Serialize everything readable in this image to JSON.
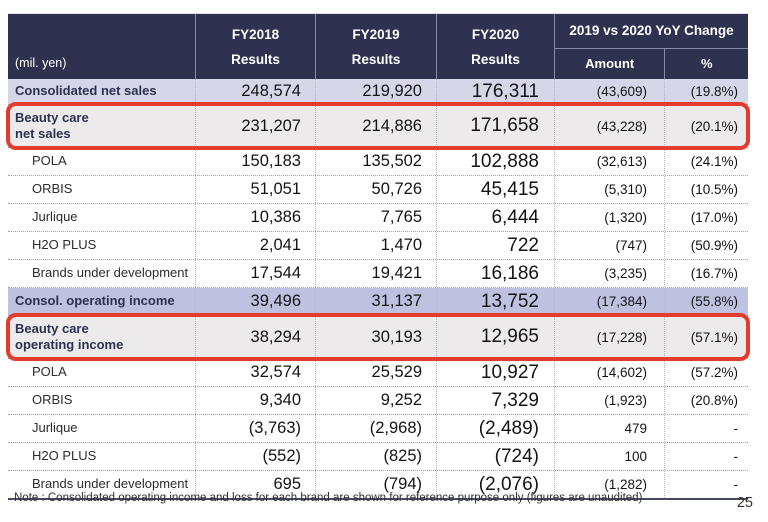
{
  "colors": {
    "header_bg": "#2e3150",
    "header_text": "#ffffff",
    "row_highlight_light": "#d5d6e8",
    "row_highlight_medium": "#bfc1e1",
    "beauty_row_bg": "#eceaeb",
    "red_box_border": "#e43b2e"
  },
  "table": {
    "unit_label": "(mil. yen)",
    "columns": [
      {
        "label": "FY2018",
        "sublabel": "Results"
      },
      {
        "label": "FY2019",
        "sublabel": "Results"
      },
      {
        "label": "FY2020",
        "sublabel": "Results"
      },
      {
        "group": "2019 vs 2020 YoY Change",
        "sub": [
          "Amount",
          "%"
        ]
      }
    ],
    "rows": [
      {
        "label": "Consolidated net sales",
        "type": "highlight-light",
        "values": [
          "248,574",
          "219,920",
          "176,311",
          "(43,609)",
          "(19.8%)"
        ]
      },
      {
        "label": "Beauty care net sales",
        "label_lines": [
          "Beauty care",
          "net sales"
        ],
        "type": "beauty",
        "values": [
          "231,207",
          "214,886",
          "171,658",
          "(43,228)",
          "(20.1%)"
        ]
      },
      {
        "label": "POLA",
        "type": "sub",
        "values": [
          "150,183",
          "135,502",
          "102,888",
          "(32,613)",
          "(24.1%)"
        ]
      },
      {
        "label": "ORBIS",
        "type": "sub",
        "values": [
          "51,051",
          "50,726",
          "45,415",
          "(5,310)",
          "(10.5%)"
        ]
      },
      {
        "label": "Jurlique",
        "type": "sub",
        "values": [
          "10,386",
          "7,765",
          "6,444",
          "(1,320)",
          "(17.0%)"
        ]
      },
      {
        "label": "H2O PLUS",
        "type": "sub",
        "values": [
          "2,041",
          "1,470",
          "722",
          "(747)",
          "(50.9%)"
        ]
      },
      {
        "label": "Brands under development",
        "type": "sub",
        "values": [
          "17,544",
          "19,421",
          "16,186",
          "(3,235)",
          "(16.7%)"
        ]
      },
      {
        "label": "Consol. operating income",
        "type": "highlight-medium",
        "values": [
          "39,496",
          "31,137",
          "13,752",
          "(17,384)",
          "(55.8%)"
        ]
      },
      {
        "label": "Beauty care operating income",
        "label_lines": [
          "Beauty care",
          "operating income"
        ],
        "type": "beauty",
        "values": [
          "38,294",
          "30,193",
          "12,965",
          "(17,228)",
          "(57.1%)"
        ]
      },
      {
        "label": "POLA",
        "type": "sub",
        "values": [
          "32,574",
          "25,529",
          "10,927",
          "(14,602)",
          "(57.2%)"
        ]
      },
      {
        "label": "ORBIS",
        "type": "sub",
        "values": [
          "9,340",
          "9,252",
          "7,329",
          "(1,923)",
          "(20.8%)"
        ]
      },
      {
        "label": "Jurlique",
        "type": "sub",
        "values": [
          "(3,763)",
          "(2,968)",
          "(2,489)",
          "479",
          "-"
        ]
      },
      {
        "label": "H2O PLUS",
        "type": "sub",
        "values": [
          "(552)",
          "(825)",
          "(724)",
          "100",
          "-"
        ]
      },
      {
        "label": "Brands under development",
        "type": "sub",
        "values": [
          "695",
          "(794)",
          "(2,076)",
          "(1,282)",
          "-"
        ]
      }
    ]
  },
  "footer": {
    "note": "Note : Consolidated operating income and loss for each brand are shown for reference purpose only (figures are unaudited)",
    "page_number": "25"
  }
}
